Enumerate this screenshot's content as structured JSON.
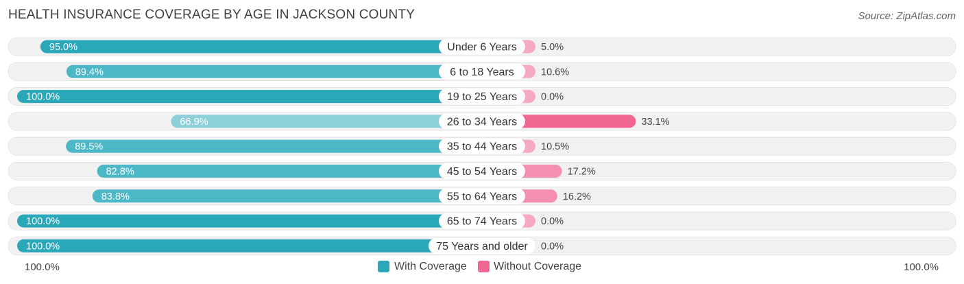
{
  "title": "HEALTH INSURANCE COVERAGE BY AGE IN JACKSON COUNTY",
  "source": "Source: ZipAtlas.com",
  "colors": {
    "with_full": "#2aa7b8",
    "with_light": "#8dd0da",
    "without_full": "#f06792",
    "without_light": "#f7a9c2",
    "track": "#eeeeee"
  },
  "legend": {
    "with": "With Coverage",
    "without": "Without Coverage"
  },
  "axis": {
    "left": "100.0%",
    "right": "100.0%"
  },
  "chart_data": {
    "type": "bar",
    "orientation": "horizontal-diverging",
    "title": "HEALTH INSURANCE COVERAGE BY AGE IN JACKSON COUNTY",
    "categories": [
      "Under 6 Years",
      "6 to 18 Years",
      "19 to 25 Years",
      "26 to 34 Years",
      "35 to 44 Years",
      "45 to 54 Years",
      "55 to 64 Years",
      "65 to 74 Years",
      "75 Years and older"
    ],
    "series": [
      {
        "name": "With Coverage",
        "values": [
          95.0,
          89.4,
          100.0,
          66.9,
          89.5,
          82.8,
          83.8,
          100.0,
          100.0
        ],
        "labels": [
          "95.0%",
          "89.4%",
          "100.0%",
          "66.9%",
          "89.5%",
          "82.8%",
          "83.8%",
          "100.0%",
          "100.0%"
        ]
      },
      {
        "name": "Without Coverage",
        "values": [
          5.0,
          10.6,
          0.0,
          33.1,
          10.5,
          17.2,
          16.2,
          0.0,
          0.0
        ],
        "labels": [
          "5.0%",
          "10.6%",
          "0.0%",
          "33.1%",
          "10.5%",
          "17.2%",
          "16.2%",
          "0.0%",
          "0.0%"
        ]
      }
    ],
    "xlim": [
      0,
      100
    ]
  }
}
